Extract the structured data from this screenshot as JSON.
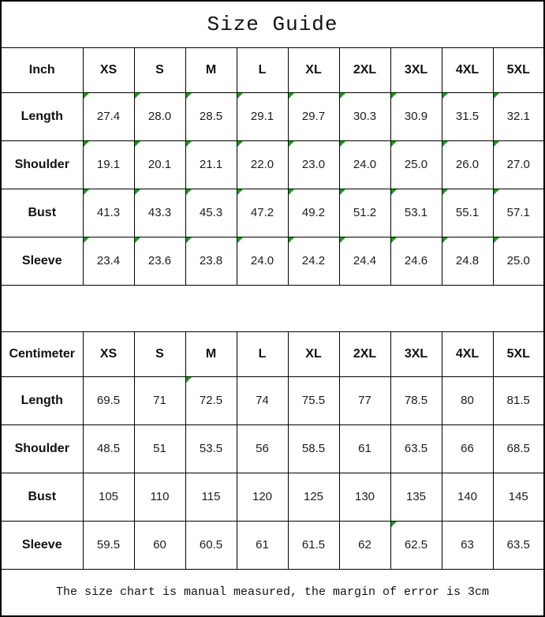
{
  "title": "Size Guide",
  "footer_note": "The size chart is manual measured, the margin of error is 3cm",
  "marker_color": "#18A018",
  "chart_data": [
    {
      "type": "table",
      "unit_header": "Inch",
      "size_columns": [
        "XS",
        "S",
        "M",
        "L",
        "XL",
        "2XL",
        "3XL",
        "4XL",
        "5XL"
      ],
      "rows": [
        {
          "label": "Length",
          "values": [
            "27.4",
            "28.0",
            "28.5",
            "29.1",
            "29.7",
            "30.3",
            "30.9",
            "31.5",
            "32.1"
          ]
        },
        {
          "label": "Shoulder",
          "values": [
            "19.1",
            "20.1",
            "21.1",
            "22.0",
            "23.0",
            "24.0",
            "25.0",
            "26.0",
            "27.0"
          ]
        },
        {
          "label": "Bust",
          "values": [
            "41.3",
            "43.3",
            "45.3",
            "47.2",
            "49.2",
            "51.2",
            "53.1",
            "55.1",
            "57.1"
          ]
        },
        {
          "label": "Sleeve",
          "values": [
            "23.4",
            "23.6",
            "23.8",
            "24.0",
            "24.2",
            "24.4",
            "24.6",
            "24.8",
            "25.0"
          ]
        }
      ],
      "comment_markers": "all-value-cells"
    },
    {
      "type": "table",
      "unit_header": "Centimeter",
      "size_columns": [
        "XS",
        "S",
        "M",
        "L",
        "XL",
        "2XL",
        "3XL",
        "4XL",
        "5XL"
      ],
      "rows": [
        {
          "label": "Length",
          "values": [
            "69.5",
            "71",
            "72.5",
            "74",
            "75.5",
            "77",
            "78.5",
            "80",
            "81.5"
          ]
        },
        {
          "label": "Shoulder",
          "values": [
            "48.5",
            "51",
            "53.5",
            "56",
            "58.5",
            "61",
            "63.5",
            "66",
            "68.5"
          ]
        },
        {
          "label": "Bust",
          "values": [
            "105",
            "110",
            "115",
            "120",
            "125",
            "130",
            "135",
            "140",
            "145"
          ]
        },
        {
          "label": "Sleeve",
          "values": [
            "59.5",
            "60",
            "60.5",
            "61",
            "61.5",
            "62",
            "62.5",
            "63",
            "63.5"
          ]
        }
      ],
      "comment_markers": [
        [
          0,
          2
        ],
        [
          3,
          6
        ]
      ]
    }
  ]
}
